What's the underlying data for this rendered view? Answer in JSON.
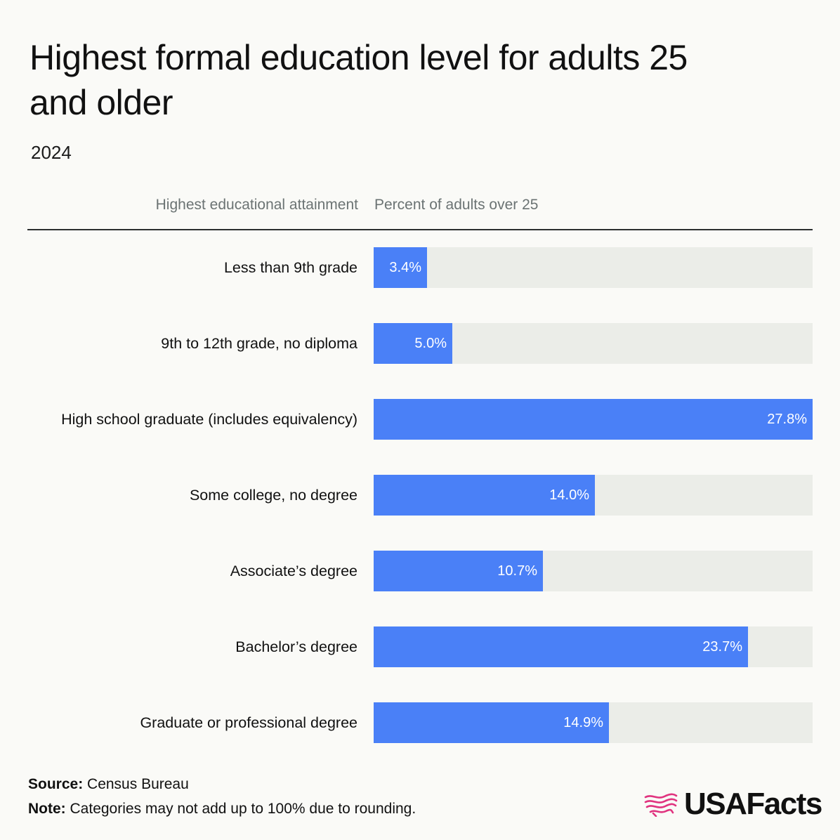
{
  "title": "Highest formal education level for adults 25 and older",
  "subtitle": "2024",
  "column_headers": {
    "left": "Highest educational attainment",
    "right": "Percent of adults over 25"
  },
  "chart_data": {
    "type": "bar",
    "orientation": "horizontal",
    "title": "Highest formal education level for adults 25 and older",
    "subtitle": "2024",
    "xlabel": "Percent of adults over 25",
    "ylabel": "Highest educational attainment",
    "xlim": [
      0,
      27.8
    ],
    "categories": [
      "Less than 9th grade",
      "9th to 12th grade, no diploma",
      "High school graduate (includes equivalency)",
      "Some college, no degree",
      "Associate’s degree",
      "Bachelor’s degree",
      "Graduate or professional degree"
    ],
    "values": [
      3.4,
      5.0,
      27.8,
      14.0,
      10.7,
      23.7,
      14.9
    ],
    "value_labels": [
      "3.4%",
      "5.0%",
      "27.8%",
      "14.0%",
      "10.7%",
      "23.7%",
      "14.9%"
    ],
    "grid": false,
    "legend": "none",
    "colors": {
      "bar": "#4a80f7",
      "track": "#ebede8"
    }
  },
  "footer": {
    "source_label": "Source:",
    "source_text": "Census Bureau",
    "note_label": "Note:",
    "note_text": "Categories may not add up to 100% due to rounding."
  },
  "logo": {
    "text": "USAFacts",
    "icon": "usafacts-flag-map-icon",
    "icon_color": "#e0337f"
  }
}
